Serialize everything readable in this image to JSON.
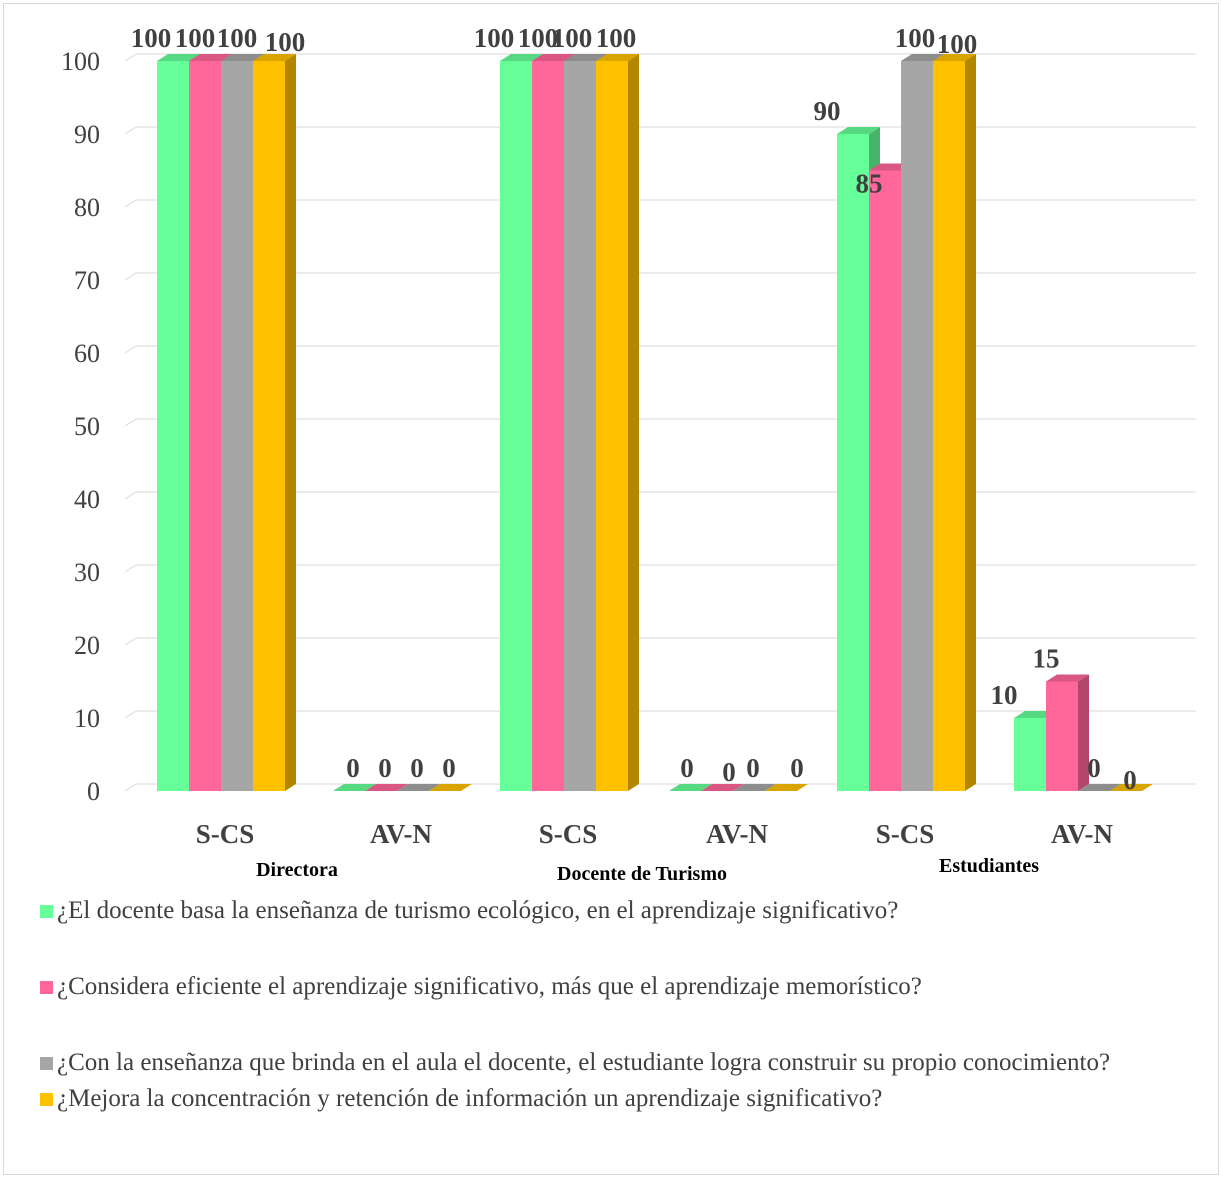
{
  "chart_data": {
    "type": "bar",
    "title": "",
    "xlabel": "",
    "ylabel": "",
    "ylim": [
      0,
      100
    ],
    "yticks": [
      0,
      10,
      20,
      30,
      40,
      50,
      60,
      70,
      80,
      90,
      100
    ],
    "grid": true,
    "legend_position": "bottom",
    "groups": [
      {
        "label": "Directora",
        "categories": [
          "S-CS",
          "AV-N"
        ]
      },
      {
        "label": "Docente de Turismo",
        "categories": [
          "S-CS",
          "AV-N"
        ]
      },
      {
        "label": "Estudiantes",
        "categories": [
          "S-CS",
          "AV-N"
        ]
      }
    ],
    "categories": [
      "S-CS",
      "AV-N",
      "S-CS",
      "AV-N",
      "S-CS",
      "AV-N"
    ],
    "series": [
      {
        "name": "¿El docente basa la enseñanza de turismo ecológico, en el aprendizaje significativo?",
        "color": "#66FF99",
        "values": [
          100,
          0,
          100,
          0,
          90,
          10
        ]
      },
      {
        "name": "¿Considera eficiente el aprendizaje significativo, más que el aprendizaje memorístico?",
        "color": "#FF6699",
        "values": [
          100,
          0,
          100,
          0,
          85,
          15
        ]
      },
      {
        "name": "¿Con la enseñanza que brinda en el aula el docente, el estudiante logra construir su propio conocimiento?",
        "color": "#A6A6A6",
        "values": [
          100,
          0,
          100,
          0,
          100,
          0
        ]
      },
      {
        "name": "¿Mejora la concentración y retención de información un aprendizaje significativo?",
        "color": "#FFC000",
        "values": [
          100,
          0,
          100,
          0,
          100,
          0
        ]
      }
    ]
  }
}
